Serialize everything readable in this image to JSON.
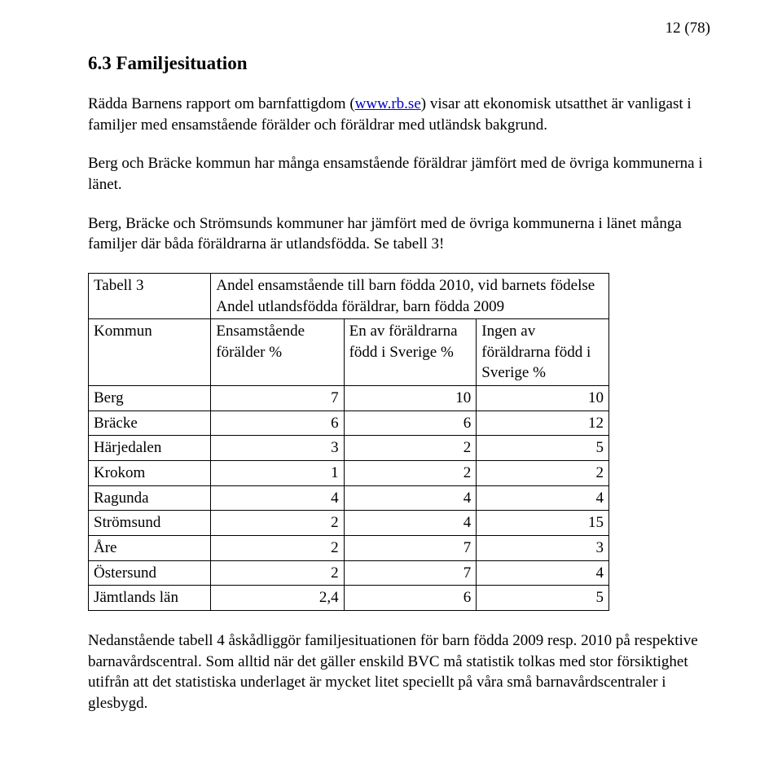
{
  "page_number": "12 (78)",
  "heading": "6.3  Familjesituation",
  "para1_pre": "Rädda Barnens rapport om barnfattigdom (",
  "link_text": "www.rb.se",
  "para1_post": ") visar att ekonomisk utsatthet är vanligast i familjer med ensamstående förälder och föräldrar med utländsk bakgrund.",
  "para2": "Berg och Bräcke kommun har många ensamstående föräldrar jämfört med de övriga kommunerna i länet.",
  "para3": "Berg, Bräcke och Strömsunds kommuner har jämfört med de övriga kommunerna i länet många familjer där båda föräldrarna är utlandsfödda. Se tabell 3!",
  "table": {
    "caption_label": "Tabell 3",
    "caption_line1": "Andel ensamstående till barn födda 2010, vid barnets födelse",
    "caption_line2": "Andel utlandsfödda föräldrar, barn födda 2009",
    "col1": "Kommun",
    "col2": "Ensamstående förälder %",
    "col3": "En av föräldrarna född i Sverige %",
    "col4": "Ingen av föräldrarna född i Sverige %",
    "rows": [
      {
        "name": "Berg",
        "c2": "7",
        "c3": "10",
        "c4": "10",
        "bold": true
      },
      {
        "name": "Bräcke",
        "c2": "6",
        "c3": "6",
        "c4": "12",
        "bold": true
      },
      {
        "name": "Härjedalen",
        "c2": "3",
        "c3": "2",
        "c4": "5",
        "bold": false
      },
      {
        "name": "Krokom",
        "c2": "1",
        "c3": "2",
        "c4": "2",
        "bold": false
      },
      {
        "name": "Ragunda",
        "c2": "4",
        "c3": "4",
        "c4": "4",
        "bold": false
      },
      {
        "name": "Strömsund",
        "c2": "2",
        "c3": "4",
        "c4": "15",
        "bold": true
      },
      {
        "name": "Åre",
        "c2": "2",
        "c3": "7",
        "c4": "3",
        "bold": false
      },
      {
        "name": "Östersund",
        "c2": "2",
        "c3": "7",
        "c4": "4",
        "bold": false
      },
      {
        "name": "Jämtlands län",
        "c2": "2,4",
        "c3": "6",
        "c4": "5",
        "bold": true
      }
    ]
  },
  "para4": "Nedanstående tabell 4 åskådliggör familjesituationen för barn födda 2009 resp. 2010 på respektive barnavårdscentral. Som alltid när det gäller enskild BVC må statistik tolkas med stor försiktighet utifrån att det statistiska underlaget är mycket litet speciellt på våra små barnavårdscentraler i glesbygd."
}
